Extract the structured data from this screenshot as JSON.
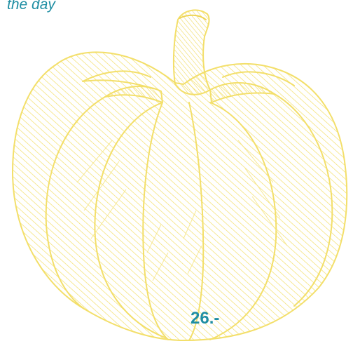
{
  "caption": {
    "text": "the day"
  },
  "price": {
    "text": "26.-"
  },
  "illustration": {
    "icon": "pumpkin-icon"
  },
  "colors": {
    "text_accent": "#1f8ea3",
    "illustration_stroke": "#f3df6a",
    "illustration_fill": "#fbf1b7",
    "background": "#ffffff"
  }
}
